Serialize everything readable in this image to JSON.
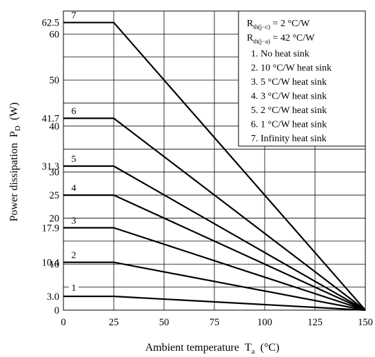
{
  "chart_data": {
    "type": "line",
    "xlabel": "Ambient temperature",
    "xlabel_symbol": "T",
    "xlabel_sub": "a",
    "xlabel_unit": "(°C)",
    "ylabel": "Power dissipation",
    "ylabel_symbol": "P",
    "ylabel_sub": "D",
    "ylabel_unit": "(W)",
    "xlim": [
      0,
      150
    ],
    "ylim": [
      0,
      65
    ],
    "x_ticks": [
      "0",
      "25",
      "50",
      "75",
      "100",
      "125",
      "150"
    ],
    "y_ticks": [
      {
        "value": 0,
        "label": "0"
      },
      {
        "value": 3.0,
        "label": "3.0"
      },
      {
        "value": 10,
        "label": "10"
      },
      {
        "value": 10.4,
        "label": "10.4"
      },
      {
        "value": 17.9,
        "label": "17.9"
      },
      {
        "value": 20,
        "label": "20"
      },
      {
        "value": 25,
        "label": "25"
      },
      {
        "value": 30,
        "label": "30"
      },
      {
        "value": 31.3,
        "label": "31.3"
      },
      {
        "value": 40,
        "label": "40"
      },
      {
        "value": 41.7,
        "label": "41.7"
      },
      {
        "value": 50,
        "label": "50"
      },
      {
        "value": 60,
        "label": "60"
      },
      {
        "value": 62.5,
        "label": "62.5"
      }
    ],
    "grid": true,
    "legend_placement": "top-right",
    "legend_lines": [
      {
        "main": "R",
        "sub": "th(j−c)",
        "rest": " = 2 °C/W"
      },
      {
        "main": "R",
        "sub": "th(j−a)",
        "rest": " = 42 °C/W"
      }
    ],
    "legend_entries": [
      "1. No heat sink",
      "2. 10 °C/W heat sink",
      "3. 5 °C/W heat sink",
      "4. 3 °C/W heat sink",
      "5. 2 °C/W heat sink",
      "6. 1 °C/W heat sink",
      "7. Infinity heat sink"
    ],
    "series": [
      {
        "label": "1",
        "points": [
          [
            0,
            3.0
          ],
          [
            25,
            3.0
          ],
          [
            150,
            0
          ]
        ]
      },
      {
        "label": "2",
        "points": [
          [
            0,
            10.4
          ],
          [
            25,
            10.4
          ],
          [
            150,
            0
          ]
        ]
      },
      {
        "label": "3",
        "points": [
          [
            0,
            17.9
          ],
          [
            25,
            17.9
          ],
          [
            150,
            0
          ]
        ]
      },
      {
        "label": "4",
        "points": [
          [
            0,
            25
          ],
          [
            25,
            25
          ],
          [
            150,
            0
          ]
        ]
      },
      {
        "label": "5",
        "points": [
          [
            0,
            31.3
          ],
          [
            25,
            31.3
          ],
          [
            150,
            0
          ]
        ]
      },
      {
        "label": "6",
        "points": [
          [
            0,
            41.7
          ],
          [
            25,
            41.7
          ],
          [
            150,
            0
          ]
        ]
      },
      {
        "label": "7",
        "points": [
          [
            0,
            62.5
          ],
          [
            25,
            62.5
          ],
          [
            150,
            0
          ]
        ]
      }
    ]
  }
}
